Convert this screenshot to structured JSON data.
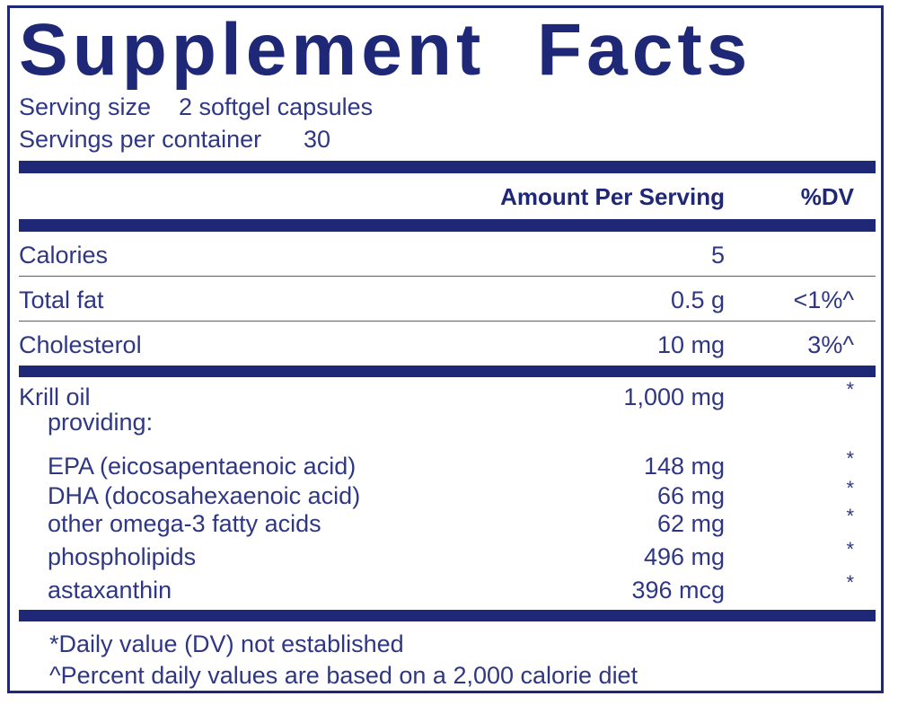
{
  "title": "Supplement Facts",
  "serving": {
    "size_label": "Serving size",
    "size": "2 softgel capsules",
    "servings_label": "Servings per container",
    "servings": "30"
  },
  "header": {
    "amount": "Amount Per Serving",
    "dv": "%DV"
  },
  "rows": [
    {
      "label": "Calories",
      "amount": "5",
      "dv": ""
    },
    {
      "label": "Total fat",
      "amount": "0.5 g",
      "dv": "<1%^"
    },
    {
      "label": "Cholesterol",
      "amount": "10 mg",
      "dv": "3%^"
    }
  ],
  "ingredients": [
    {
      "label": "Krill oil",
      "amount": "1,000 mg",
      "dv": "*"
    },
    {
      "label": "providing:"
    },
    {
      "label": "EPA (eicosapentaenoic acid)",
      "amount": "148 mg",
      "dv": "*"
    },
    {
      "label": "DHA (docosahexaenoic acid)",
      "amount": "66 mg",
      "dv": "*"
    },
    {
      "label": "other omega-3 fatty acids",
      "amount": "62 mg",
      "dv": "*"
    },
    {
      "label": "phospholipids",
      "amount": "496 mg",
      "dv": "*"
    },
    {
      "label": "astaxanthin",
      "amount": "396 mcg",
      "dv": "*"
    }
  ],
  "footnotes": [
    "*Daily value (DV) not established",
    "^Percent daily values are based on a 2,000 calorie diet"
  ]
}
